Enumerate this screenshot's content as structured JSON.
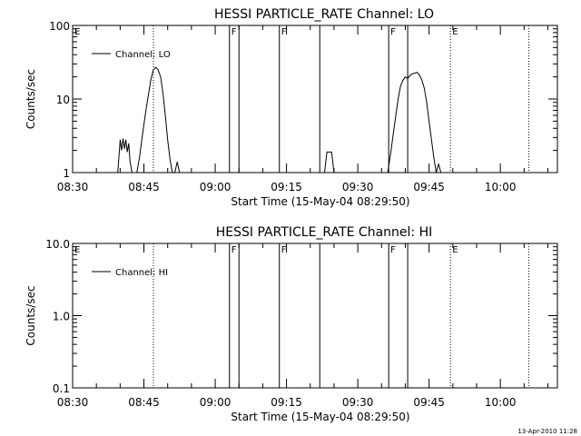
{
  "footer": "13-Apr-2010 11:28",
  "chart_data": [
    {
      "type": "line",
      "title": "HESSI PARTICLE_RATE Channel: LO",
      "xlabel": "Start Time (15-May-04 08:29:50)",
      "ylabel": "Counts/sec",
      "y_scale": "log",
      "ylim": [
        1,
        100
      ],
      "y_ticks": [
        1,
        10,
        100
      ],
      "y_tick_labels": [
        "1",
        "10",
        "100"
      ],
      "xlim": [
        "08:30",
        "10:12"
      ],
      "x_ticks": [
        "08:30",
        "08:45",
        "09:00",
        "09:15",
        "09:30",
        "09:45",
        "10:00"
      ],
      "legend": {
        "label": "Channel: LO",
        "position": "top-left"
      },
      "grid": false,
      "markers": [
        {
          "time": "08:30",
          "label": "E",
          "style": "dotted"
        },
        {
          "time": "08:47",
          "label": "",
          "style": "dotted"
        },
        {
          "time": "09:03",
          "label": "F",
          "style": "solid"
        },
        {
          "time": "09:05",
          "label": "",
          "style": "solid"
        },
        {
          "time": "09:13.5",
          "label": "F",
          "style": "solid"
        },
        {
          "time": "09:22",
          "label": "",
          "style": "solid"
        },
        {
          "time": "09:36.5",
          "label": "F",
          "style": "solid"
        },
        {
          "time": "09:40.5",
          "label": "",
          "style": "solid"
        },
        {
          "time": "09:49.5",
          "label": "E",
          "style": "dotted"
        },
        {
          "time": "10:06",
          "label": "",
          "style": "dotted"
        }
      ],
      "series": [
        {
          "name": "Channel: LO",
          "segments": [
            {
              "x": [
                "08:39.5",
                "08:40",
                "08:40.3",
                "08:40.6",
                "08:40.9",
                "08:41.2",
                "08:41.5",
                "08:41.8",
                "08:42.1",
                "08:42.5"
              ],
              "y": [
                1.0,
                2.8,
                2.0,
                2.9,
                2.1,
                2.8,
                1.9,
                2.5,
                1.4,
                1.0
              ]
            },
            {
              "x": [
                "08:43.5",
                "08:44",
                "08:44.5",
                "08:45",
                "08:45.5",
                "08:46",
                "08:46.5",
                "08:47",
                "08:47.5",
                "08:48",
                "08:48.5",
                "08:49",
                "08:49.5",
                "08:50",
                "08:50.5",
                "08:51"
              ],
              "y": [
                1.0,
                1.5,
                2.6,
                4.5,
                7.5,
                12.0,
                19.0,
                25.0,
                27.0,
                25.0,
                20.0,
                12.0,
                6.0,
                2.8,
                1.5,
                1.0
              ]
            },
            {
              "x": [
                "08:51.5",
                "08:52",
                "08:52.5"
              ],
              "y": [
                1.0,
                1.4,
                1.0
              ]
            },
            {
              "x": [
                "09:23",
                "09:23.5",
                "09:24",
                "09:24.5",
                "09:25"
              ],
              "y": [
                1.0,
                1.9,
                1.9,
                1.9,
                1.0
              ]
            },
            {
              "x": [
                "09:36.3",
                "09:37",
                "09:37.5",
                "09:38",
                "09:38.5",
                "09:39",
                "09:39.5",
                "09:40",
                "09:40.5",
                "09:41",
                "09:41.5",
                "09:42",
                "09:42.5",
                "09:43",
                "09:43.5",
                "09:44",
                "09:44.5",
                "09:45",
                "09:45.5",
                "09:46",
                "09:46.5",
                "09:47",
                "09:47.5"
              ],
              "y": [
                1.0,
                2.0,
                3.5,
                6.0,
                10.0,
                15.0,
                18.0,
                20.0,
                19.0,
                21.0,
                22.0,
                22.5,
                23.0,
                21.0,
                18.0,
                14.0,
                9.0,
                5.0,
                2.8,
                1.6,
                1.0,
                1.3,
                1.0
              ]
            }
          ]
        }
      ]
    },
    {
      "type": "line",
      "title": "HESSI PARTICLE_RATE Channel: HI",
      "xlabel": "Start Time (15-May-04 08:29:50)",
      "ylabel": "Counts/sec",
      "y_scale": "log",
      "ylim": [
        0.1,
        10
      ],
      "y_ticks": [
        0.1,
        1,
        10
      ],
      "y_tick_labels": [
        "0.1",
        "1.0",
        "10.0"
      ],
      "xlim": [
        "08:30",
        "10:12"
      ],
      "x_ticks": [
        "08:30",
        "08:45",
        "09:00",
        "09:15",
        "09:30",
        "09:45",
        "10:00"
      ],
      "legend": {
        "label": "Channel: HI",
        "position": "top-left"
      },
      "grid": false,
      "markers": [
        {
          "time": "08:30",
          "label": "E",
          "style": "dotted"
        },
        {
          "time": "08:47",
          "label": "",
          "style": "dotted"
        },
        {
          "time": "09:03",
          "label": "F",
          "style": "solid"
        },
        {
          "time": "09:05",
          "label": "",
          "style": "solid"
        },
        {
          "time": "09:13.5",
          "label": "F",
          "style": "solid"
        },
        {
          "time": "09:22",
          "label": "",
          "style": "solid"
        },
        {
          "time": "09:36.5",
          "label": "F",
          "style": "solid"
        },
        {
          "time": "09:40.5",
          "label": "",
          "style": "solid"
        },
        {
          "time": "09:49.5",
          "label": "E",
          "style": "dotted"
        },
        {
          "time": "10:06",
          "label": "",
          "style": "dotted"
        }
      ],
      "series": [
        {
          "name": "Channel: HI",
          "segments": []
        }
      ]
    }
  ]
}
